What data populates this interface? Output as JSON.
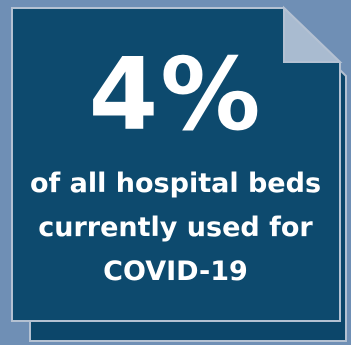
{
  "card": {
    "colors": {
      "background": "#6f8fb5",
      "card_fill": "#0d4a6e",
      "card_back": "#0c466a",
      "border": "#b4c1d2",
      "text": "#ffffff"
    },
    "stat_value": "4%",
    "caption_lines": [
      "of all hospital beds",
      "currently used for",
      "COVID-19"
    ]
  }
}
